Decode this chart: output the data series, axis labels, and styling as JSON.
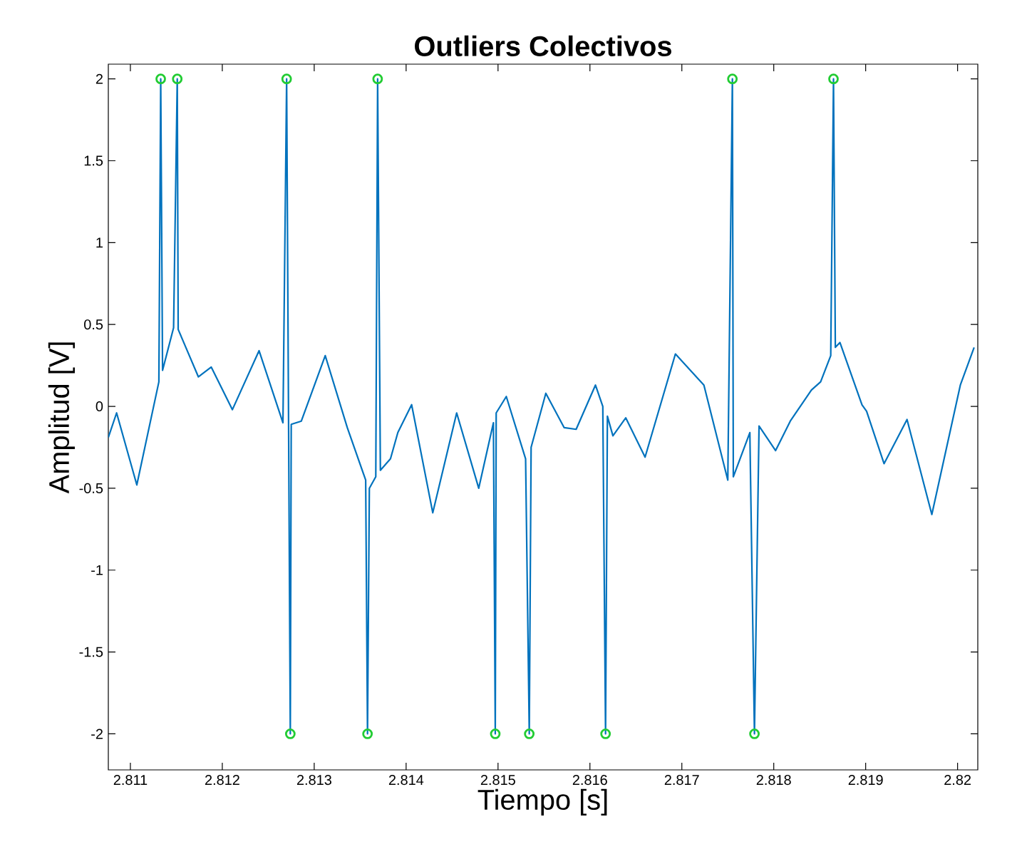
{
  "chart_data": {
    "type": "line",
    "title": "Outliers Colectivos",
    "xlabel": "Tiempo [s]",
    "ylabel": "Amplitud [V]",
    "xlim": [
      2.81076,
      2.82022
    ],
    "ylim": [
      -2.22,
      2.09
    ],
    "xticks": [
      2.811,
      2.812,
      2.813,
      2.814,
      2.815,
      2.816,
      2.817,
      2.818,
      2.819,
      2.82
    ],
    "yticks": [
      -2,
      -1.5,
      -1,
      -0.5,
      0,
      0.5,
      1,
      1.5,
      2
    ],
    "grid": false,
    "series": [
      {
        "color": "#0072bd",
        "line_style": "solid",
        "x": [
          2.81076,
          2.81085,
          2.81107,
          2.81131,
          2.81133,
          2.81135,
          2.81147,
          2.81151,
          2.81152,
          2.81174,
          2.81188,
          2.81211,
          2.8124,
          2.81266,
          2.8127,
          2.81274,
          2.81275,
          2.81286,
          2.81312,
          2.81336,
          2.81356,
          2.81358,
          2.8136,
          2.81367,
          2.81369,
          2.81372,
          2.81383,
          2.81391,
          2.81406,
          2.81429,
          2.81455,
          2.81479,
          2.81495,
          2.81497,
          2.81498,
          2.81509,
          2.8153,
          2.81534,
          2.81536,
          2.81552,
          2.81572,
          2.81585,
          2.81606,
          2.81614,
          2.81617,
          2.81619,
          2.81625,
          2.81639,
          2.8166,
          2.81693,
          2.81724,
          2.8175,
          2.81755,
          2.81756,
          2.81774,
          2.81779,
          2.81784,
          2.81802,
          2.81818,
          2.81841,
          2.81851,
          2.81862,
          2.81865,
          2.81867,
          2.81872,
          2.81896,
          2.81901,
          2.8192,
          2.81945,
          2.81972,
          2.82003,
          2.82018
        ],
        "values": [
          -0.19,
          -0.04,
          -0.48,
          0.15,
          2,
          0.22,
          0.48,
          2,
          0.47,
          0.18,
          0.24,
          -0.02,
          0.34,
          -0.1,
          2,
          -2,
          -0.11,
          -0.09,
          0.31,
          -0.13,
          -0.45,
          -2,
          -0.5,
          -0.43,
          2,
          -0.39,
          -0.32,
          -0.16,
          0.01,
          -0.65,
          -0.04,
          -0.5,
          -0.1,
          -2,
          -0.04,
          0.06,
          -0.32,
          -2,
          -0.25,
          0.08,
          -0.13,
          -0.14,
          0.13,
          0.0,
          -2,
          -0.06,
          -0.18,
          -0.07,
          -0.31,
          0.32,
          0.13,
          -0.45,
          2,
          -0.43,
          -0.16,
          -2,
          -0.12,
          -0.27,
          -0.09,
          0.1,
          0.15,
          0.31,
          2,
          0.36,
          0.39,
          0.01,
          -0.03,
          -0.35,
          -0.08,
          -0.66,
          0.13,
          0.36
        ]
      },
      {
        "type": "scatter",
        "color": "#22cc33",
        "marker": "circle",
        "x": [
          2.81133,
          2.81151,
          2.8127,
          2.81369,
          2.81755,
          2.81865,
          2.81274,
          2.81358,
          2.81497,
          2.81534,
          2.81617,
          2.81779
        ],
        "values": [
          2,
          2,
          2,
          2,
          2,
          2,
          -2,
          -2,
          -2,
          -2,
          -2,
          -2
        ]
      }
    ]
  }
}
